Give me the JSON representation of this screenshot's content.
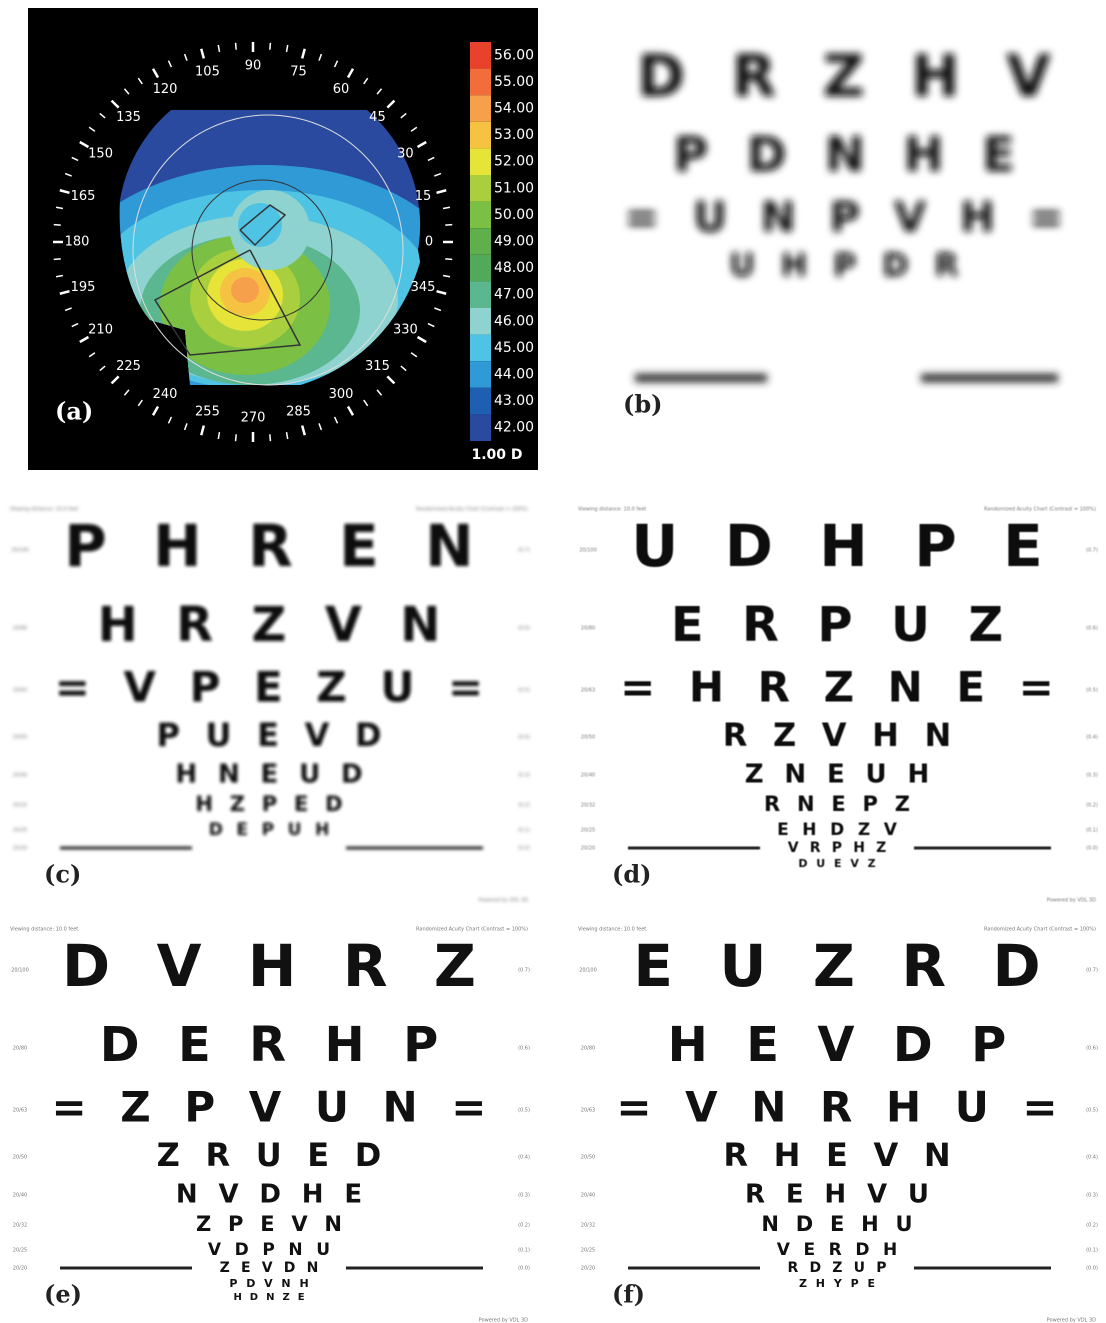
{
  "panel_a": {
    "label": "(a)",
    "unit_label": "1.00 D",
    "angle_ticks": [
      0,
      15,
      30,
      45,
      60,
      75,
      90,
      105,
      120,
      135,
      150,
      165,
      180,
      195,
      210,
      225,
      240,
      255,
      270,
      285,
      300,
      315,
      330,
      345
    ],
    "scale": [
      {
        "value": 56,
        "label": "56.00",
        "color": "#e8412c"
      },
      {
        "value": 55,
        "label": "55.00",
        "color": "#f26d3a"
      },
      {
        "value": 54,
        "label": "54.00",
        "color": "#f7a04b"
      },
      {
        "value": 53,
        "label": "53.00",
        "color": "#f5c242"
      },
      {
        "value": 52,
        "label": "52.00",
        "color": "#e6e339"
      },
      {
        "value": 51,
        "label": "51.00",
        "color": "#a9cf3e"
      },
      {
        "value": 50,
        "label": "50.00",
        "color": "#7bbf45"
      },
      {
        "value": 49,
        "label": "49.00",
        "color": "#5fb04d"
      },
      {
        "value": 48,
        "label": "48.00",
        "color": "#52a95a"
      },
      {
        "value": 47,
        "label": "47.00",
        "color": "#5bb790"
      },
      {
        "value": 46,
        "label": "46.00",
        "color": "#8fd3d0"
      },
      {
        "value": 45,
        "label": "45.00",
        "color": "#4fc3e4"
      },
      {
        "value": 44,
        "label": "44.00",
        "color": "#2f9ad6"
      },
      {
        "value": 43,
        "label": "43.00",
        "color": "#1f5fb2"
      },
      {
        "value": 42,
        "label": "42.00",
        "color": "#2a4aa0"
      }
    ]
  },
  "header_left": "Viewing distance: 10.0 feet",
  "header_right": "Randomized Acuity Chart (Contrast = 100%)",
  "footer": "Powered by VDL 3D",
  "row_labels": [
    "20/100",
    "20/80",
    "20/63",
    "20/50",
    "20/40",
    "20/32",
    "20/25",
    "20/20"
  ],
  "logmar": [
    "(0.7)",
    "(0.6)",
    "(0.5)",
    "(0.4)",
    "(0.3)",
    "(0.2)",
    "(0.1)",
    "(0.0)"
  ],
  "charts": [
    {
      "label": "(b)",
      "rows": [
        "DRZHV",
        "PDNHE",
        "=UNPVH=",
        "UHPDR"
      ]
    },
    {
      "label": "(c)",
      "rows": [
        "PHREN",
        "HRZVN",
        "=VPEZU=",
        "PUEVD",
        "HNEUD",
        "HZPED",
        "DEPUH"
      ]
    },
    {
      "label": "(d)",
      "rows": [
        "UDHPE",
        "ERPUZ",
        "=HRZNE=",
        "RZVHN",
        "ZNEUH",
        "RNEPZ",
        "EHDZV",
        "VRPHZ",
        "DUEVZ"
      ]
    },
    {
      "label": "(e)",
      "rows": [
        "DVHRZ",
        "DERHP",
        "=ZPVUN=",
        "ZRUED",
        "NVDHE",
        "ZPEVN",
        "VDPNU",
        "ZEVDN",
        "PDVNH",
        "HDNZE"
      ]
    },
    {
      "label": "(f)",
      "rows": [
        "EUZRD",
        "HEVDP",
        "=VNRHU=",
        "RHEVN",
        "REHVU",
        "NDEHU",
        "VERDH",
        "RDZUP",
        "ZHYPE"
      ]
    }
  ]
}
